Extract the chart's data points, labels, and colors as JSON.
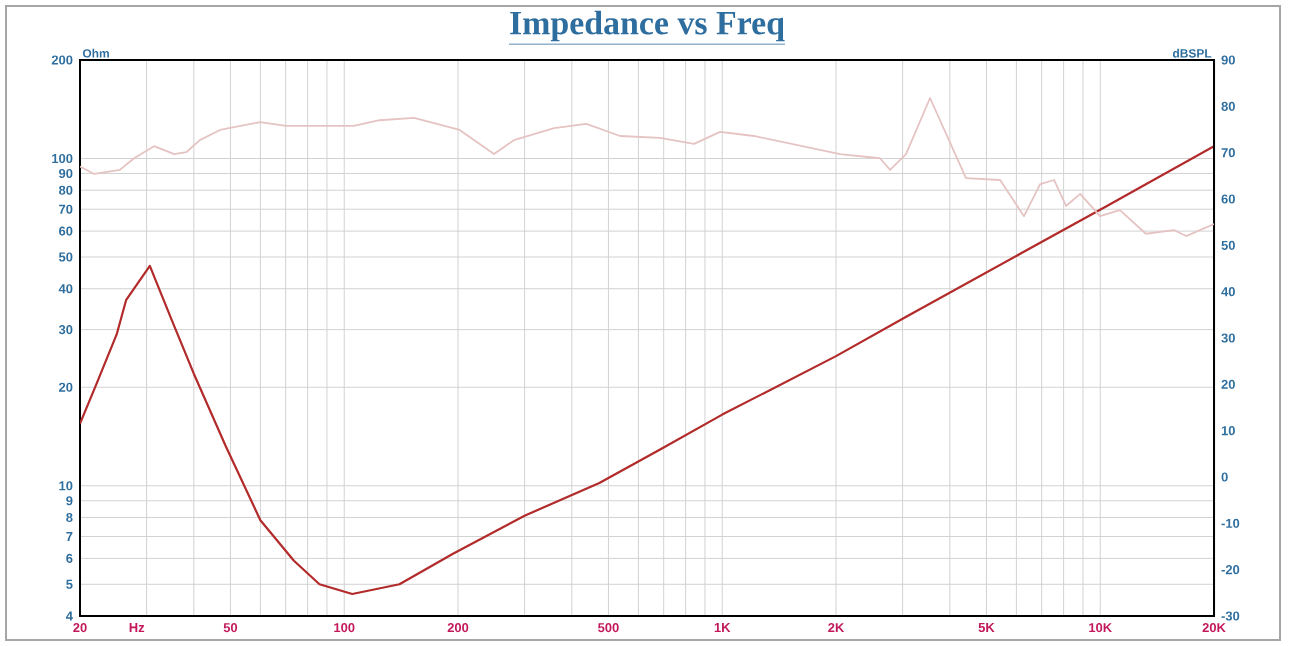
{
  "chart_data": {
    "type": "line",
    "title": "Impedance vs Freq",
    "xlabel": "Hz",
    "ylabel": "Ohm",
    "y2label": "dBSPL",
    "log": "xy",
    "grid": true,
    "marker": "none",
    "line_style": "solid",
    "xlim": [
      20,
      20000
    ],
    "xticks": [
      20,
      {
        "value": 30,
        "label": null
      },
      {
        "value": 40,
        "label": null
      },
      50,
      {
        "value": 60,
        "label": null
      },
      {
        "value": 70,
        "label": null
      },
      {
        "value": 80,
        "label": null
      },
      {
        "value": 90,
        "label": null
      },
      100,
      200,
      {
        "value": 300,
        "label": null
      },
      {
        "value": 400,
        "label": null
      },
      500,
      {
        "value": 600,
        "label": null
      },
      {
        "value": 700,
        "label": null
      },
      {
        "value": 800,
        "label": null
      },
      {
        "value": 900,
        "label": null
      },
      {
        "value": 1000,
        "label": "1K"
      },
      {
        "value": 2000,
        "label": "2K"
      },
      {
        "value": 3000,
        "label": null
      },
      {
        "value": 4000,
        "label": null
      },
      {
        "value": 5000,
        "label": "5K"
      },
      {
        "value": 6000,
        "label": null
      },
      {
        "value": 7000,
        "label": null
      },
      {
        "value": 8000,
        "label": null
      },
      {
        "value": 9000,
        "label": null
      },
      {
        "value": 10000,
        "label": "10K"
      },
      {
        "value": 20000,
        "label": "20K"
      }
    ],
    "ylim": [
      4,
      200
    ],
    "yticks": [
      4,
      5,
      6,
      7,
      8,
      9,
      10,
      20,
      30,
      40,
      50,
      60,
      70,
      80,
      90,
      100,
      200
    ],
    "y2lim": [
      -30,
      90
    ],
    "y2ticks": [
      -30,
      -20,
      -10,
      0,
      10,
      20,
      30,
      40,
      50,
      60,
      70,
      80,
      90
    ],
    "series": [
      {
        "color": "#b22a2a",
        "x": [
          20,
          22,
          25,
          26.5,
          30.6,
          35,
          40,
          48.6,
          60,
          73.6,
          86,
          105,
          140,
          194,
          300,
          473,
          685,
          1000,
          2000,
          3075,
          10386,
          20000
        ],
        "values": [
          15.5,
          20.2,
          29,
          37,
          47,
          32,
          22,
          13.2,
          7.85,
          5.9,
          5.0,
          4.67,
          5.0,
          6.2,
          8.1,
          10.2,
          12.9,
          16.5,
          24.9,
          32.9,
          71.5,
          109
        ]
      },
      {
        "color": "#e6c3c3",
        "axis": "y2",
        "x": [
          20,
          21.8,
          25.5,
          27.8,
          31.4,
          35.5,
          38.2,
          41.5,
          46.9,
          59.9,
          70.1,
          106,
          124,
          153,
          202,
          249,
          281,
          359,
          437,
          537,
          684,
          842,
          987,
          1214,
          2050,
          2614,
          2780,
          3063,
          3546,
          4414,
          5433,
          6286,
          6935,
          7553,
          8119,
          8850,
          9986,
          11270,
          13210,
          15670,
          16870,
          20000
        ],
        "values": [
          67,
          65.4,
          66.3,
          68.8,
          71.4,
          69.7,
          70.1,
          72.7,
          74.9,
          76.6,
          75.8,
          75.8,
          77,
          77.5,
          74.9,
          69.7,
          72.7,
          75.3,
          76.2,
          73.6,
          73.2,
          71.9,
          74.5,
          73.6,
          69.7,
          68.8,
          66.3,
          69.7,
          81.8,
          64.5,
          64.1,
          56.3,
          63.2,
          64.1,
          58.5,
          61.1,
          56.3,
          57.6,
          52.5,
          53.3,
          52,
          54.6
        ]
      }
    ]
  }
}
